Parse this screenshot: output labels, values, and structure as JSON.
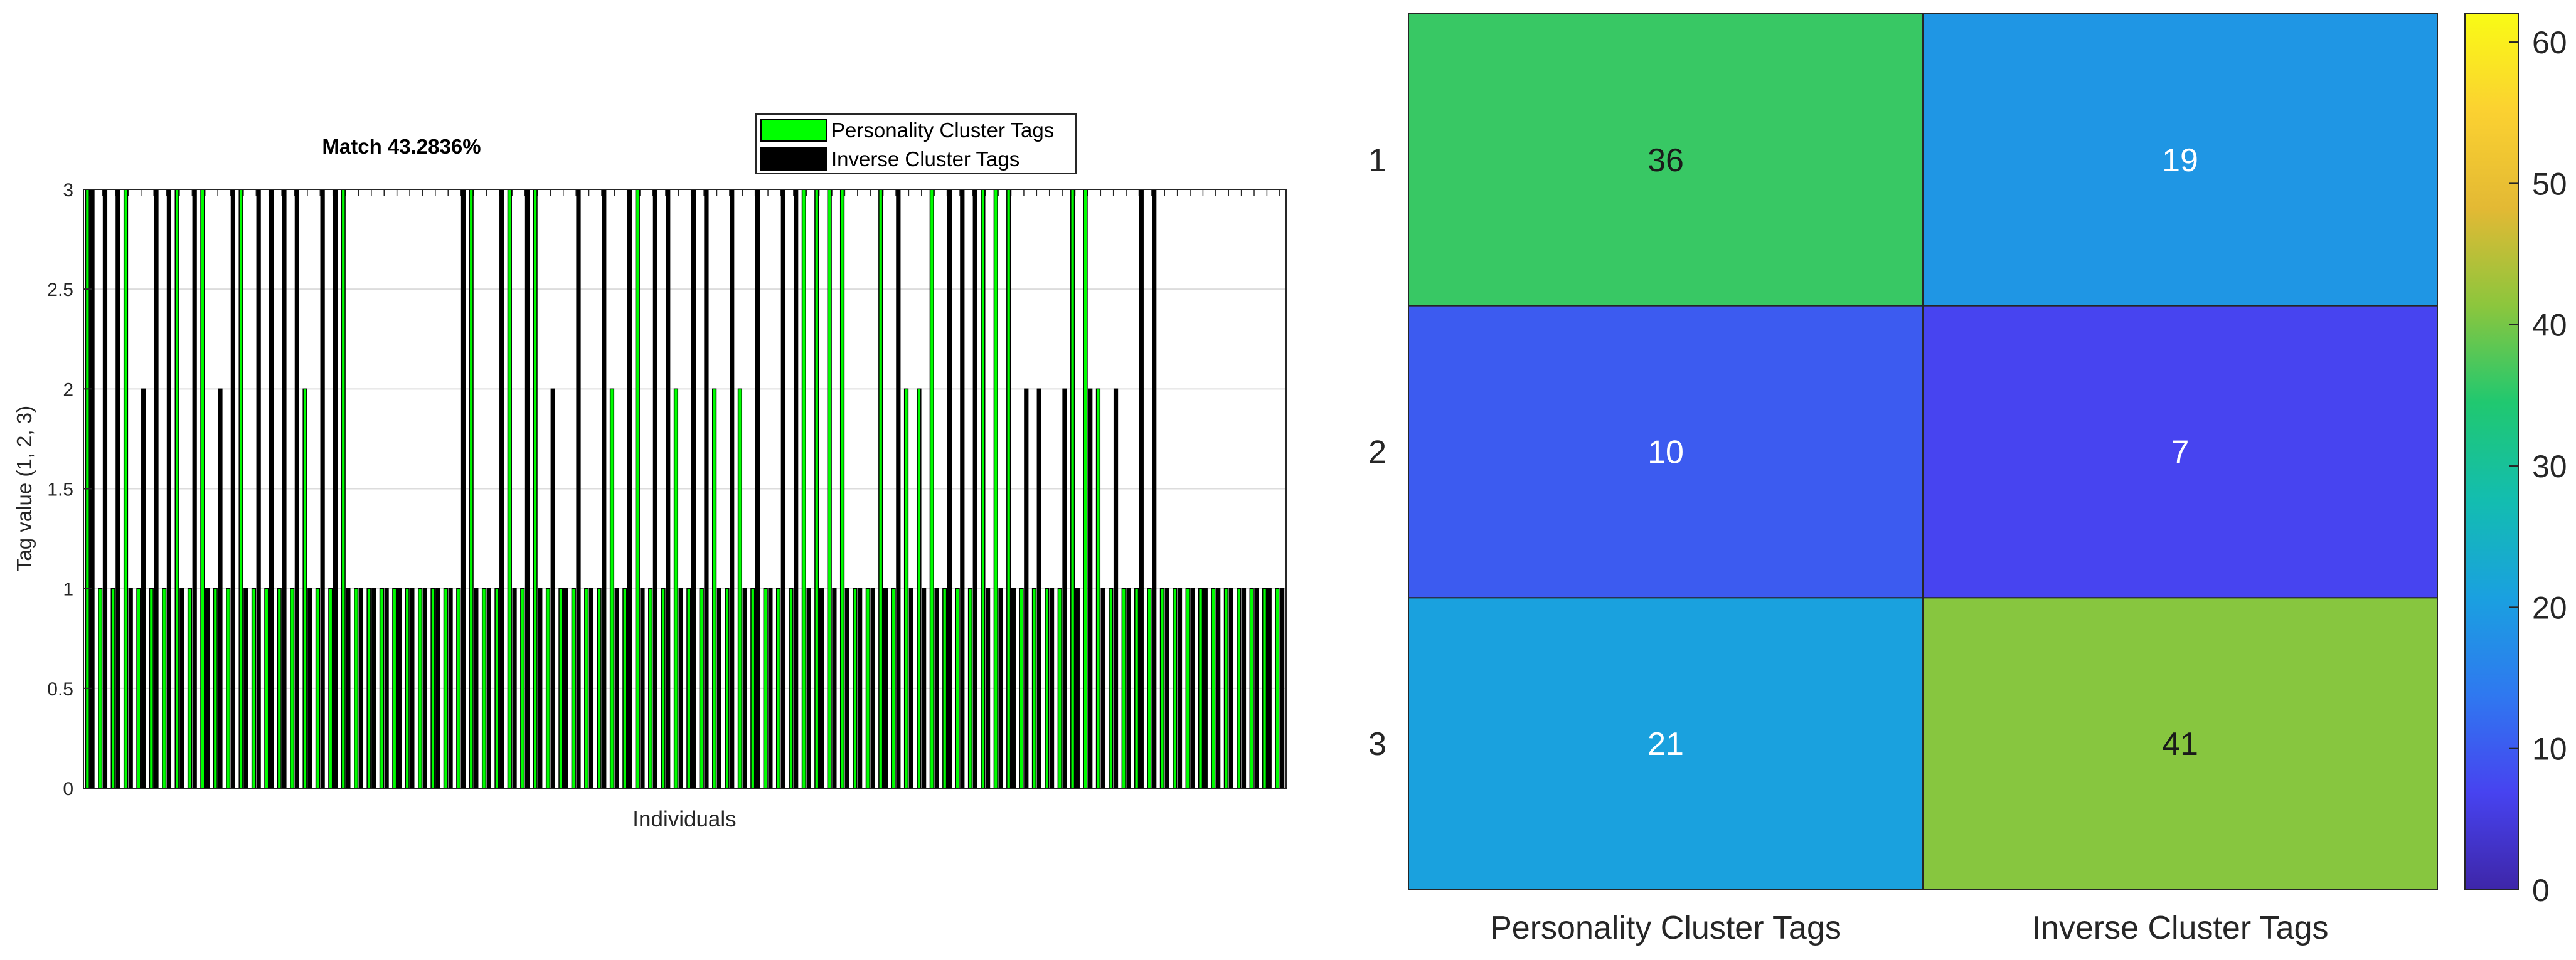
{
  "chart_data": [
    {
      "type": "bar",
      "title": "Match 43.2836%",
      "xlabel": "Individuals",
      "ylabel": "Tag value (1, 2, 3)",
      "ylim": [
        0,
        3
      ],
      "yticks": [
        "0",
        "0.5",
        "1",
        "1.5",
        "2",
        "2.5",
        "3"
      ],
      "grid": true,
      "legend_position": "top-right",
      "series": [
        {
          "name": "Personality Cluster Tags",
          "color": "#00ff00",
          "values": [
            3,
            1,
            1,
            3,
            1,
            1,
            1,
            3,
            1,
            3,
            1,
            1,
            3,
            1,
            1,
            1,
            1,
            2,
            1,
            1,
            3,
            1,
            1,
            1,
            1,
            1,
            1,
            1,
            1,
            1,
            3,
            1,
            1,
            3,
            1,
            3,
            1,
            1,
            1,
            1,
            1,
            2,
            1,
            3,
            1,
            1,
            2,
            1,
            1,
            2,
            1,
            2,
            1,
            1,
            1,
            1,
            3,
            3,
            3,
            3,
            1,
            1,
            3,
            1,
            2,
            2,
            3,
            1,
            1,
            1,
            3,
            3,
            3,
            1,
            1,
            1,
            1,
            3,
            3,
            2,
            1,
            1,
            1,
            1,
            1,
            1,
            1,
            1,
            1,
            1,
            1,
            1,
            1,
            1
          ]
        },
        {
          "name": "Inverse Cluster Tags",
          "color": "#000000",
          "values": [
            3,
            3,
            3,
            1,
            2,
            3,
            3,
            1,
            3,
            1,
            2,
            3,
            1,
            3,
            3,
            3,
            3,
            1,
            3,
            3,
            1,
            1,
            1,
            1,
            1,
            1,
            1,
            1,
            1,
            3,
            1,
            1,
            3,
            1,
            3,
            1,
            2,
            1,
            3,
            1,
            3,
            1,
            3,
            1,
            3,
            3,
            1,
            3,
            3,
            1,
            3,
            1,
            3,
            1,
            3,
            3,
            1,
            1,
            1,
            1,
            1,
            1,
            1,
            3,
            1,
            1,
            1,
            3,
            3,
            3,
            1,
            1,
            1,
            2,
            2,
            1,
            2,
            1,
            2,
            1,
            2,
            1,
            3,
            3,
            1,
            1,
            1,
            1,
            1,
            1,
            1,
            1,
            1,
            1
          ]
        }
      ]
    },
    {
      "type": "heatmap",
      "row_labels": [
        "1",
        "2",
        "3"
      ],
      "column_labels": [
        "Personality Cluster Tags",
        "Inverse Cluster Tags"
      ],
      "values": [
        [
          36,
          19
        ],
        [
          10,
          7
        ],
        [
          21,
          41
        ]
      ],
      "colorbar": {
        "range": [
          0,
          62
        ],
        "ticks": [
          "0",
          "10",
          "20",
          "30",
          "40",
          "50",
          "60"
        ],
        "colormap": [
          "#3e26a8",
          "#4743f0",
          "#2f78f0",
          "#1aa0e0",
          "#13bdb0",
          "#20c870",
          "#8cc63d",
          "#e3b934",
          "#fbd131",
          "#f9fb15"
        ]
      }
    }
  ]
}
